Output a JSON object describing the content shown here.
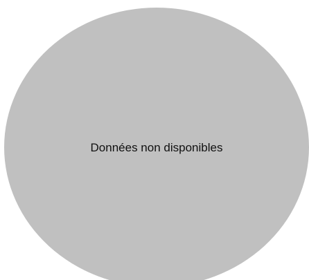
{
  "chart_data": {
    "type": "pie",
    "title": "",
    "categories": [],
    "values": [],
    "empty_message": "Données non disponibles",
    "colors": {
      "empty_fill": "#c0c0c0",
      "text": "#111111",
      "background": "#ffffff"
    },
    "legend": "none"
  }
}
